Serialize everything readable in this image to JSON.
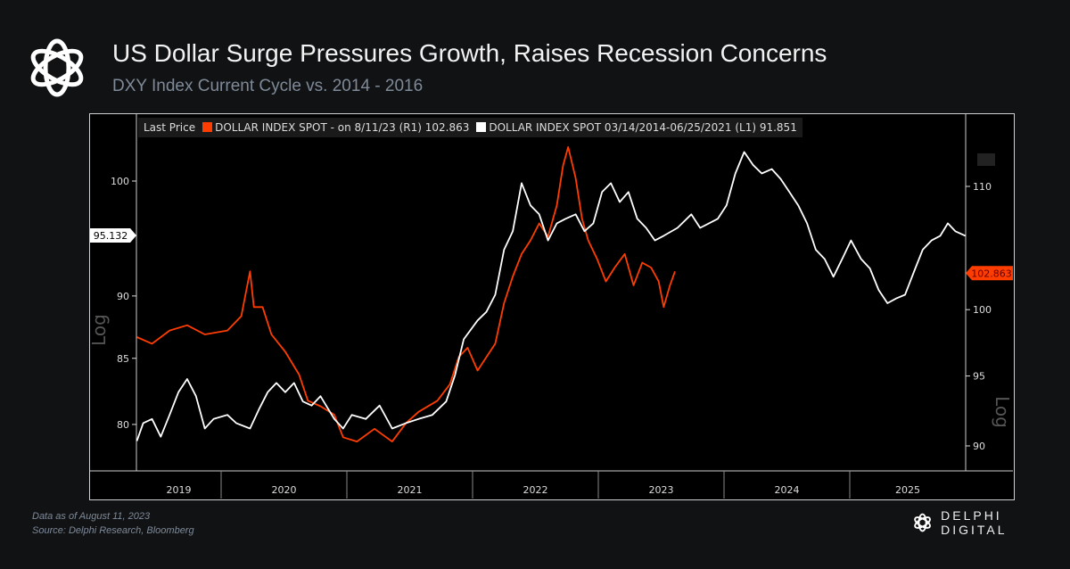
{
  "header": {
    "title": "US Dollar Surge Pressures Growth, Raises Recession Concerns",
    "subtitle": "DXY Index Current Cycle vs. 2014 - 2016"
  },
  "footer": {
    "line1": "Data as of August 11, 2023",
    "line2": "Source: Delphi Research, Bloomberg",
    "brand": "DELPHI DIGITAL"
  },
  "chart_data": {
    "type": "line",
    "legend": {
      "prefix": "Last Price",
      "series1": "DOLLAR INDEX SPOT -  on 8/11/23  (R1) 102.863",
      "series2": "DOLLAR INDEX SPOT 03/14/2014-06/25/2021   (L1) 91.851",
      "placement": "top-left"
    },
    "x_tick_labels": [
      "2019",
      "2020",
      "2021",
      "2022",
      "2023",
      "2024",
      "2025"
    ],
    "xlim": [
      2019.33,
      2025.92
    ],
    "left_axis": {
      "label": "Log",
      "scale": "log",
      "ticks": [
        80,
        85,
        90,
        100
      ],
      "marker": "95.132"
    },
    "right_axis": {
      "label": "Log",
      "scale": "log",
      "ticks": [
        90,
        95,
        100,
        110
      ],
      "marker": "102.863"
    },
    "colors": {
      "series1": "#ff3d00",
      "series2": "#ffffff"
    },
    "series": [
      {
        "name": "DOLLAR INDEX SPOT (current, R1)",
        "axis": "right",
        "points": [
          [
            2019.33,
            97.9
          ],
          [
            2019.45,
            97.4
          ],
          [
            2019.59,
            98.4
          ],
          [
            2019.73,
            98.8
          ],
          [
            2019.87,
            98.1
          ],
          [
            2020.05,
            98.4
          ],
          [
            2020.16,
            99.5
          ],
          [
            2020.23,
            103.0
          ],
          [
            2020.26,
            100.2
          ],
          [
            2020.33,
            100.2
          ],
          [
            2020.4,
            98.1
          ],
          [
            2020.51,
            96.8
          ],
          [
            2020.62,
            95.1
          ],
          [
            2020.69,
            93.2
          ],
          [
            2020.79,
            92.8
          ],
          [
            2020.9,
            92.2
          ],
          [
            2020.97,
            90.6
          ],
          [
            2021.08,
            90.3
          ],
          [
            2021.22,
            91.2
          ],
          [
            2021.36,
            90.3
          ],
          [
            2021.47,
            91.6
          ],
          [
            2021.57,
            92.4
          ],
          [
            2021.72,
            93.2
          ],
          [
            2021.82,
            94.4
          ],
          [
            2021.89,
            96.4
          ],
          [
            2021.96,
            97.1
          ],
          [
            2022.04,
            95.4
          ],
          [
            2022.11,
            96.4
          ],
          [
            2022.18,
            97.4
          ],
          [
            2022.25,
            100.5
          ],
          [
            2022.32,
            102.6
          ],
          [
            2022.39,
            104.4
          ],
          [
            2022.46,
            105.5
          ],
          [
            2022.53,
            106.9
          ],
          [
            2022.6,
            105.8
          ],
          [
            2022.67,
            108.4
          ],
          [
            2022.72,
            111.8
          ],
          [
            2022.76,
            113.4
          ],
          [
            2022.82,
            110.7
          ],
          [
            2022.87,
            107.3
          ],
          [
            2022.92,
            105.5
          ],
          [
            2022.99,
            104.0
          ],
          [
            2023.06,
            102.2
          ],
          [
            2023.13,
            103.3
          ],
          [
            2023.21,
            104.4
          ],
          [
            2023.28,
            101.9
          ],
          [
            2023.35,
            103.7
          ],
          [
            2023.42,
            103.3
          ],
          [
            2023.48,
            102.2
          ],
          [
            2023.52,
            100.2
          ],
          [
            2023.57,
            101.9
          ],
          [
            2023.61,
            103.0
          ]
        ]
      },
      {
        "name": "DOLLAR INDEX SPOT 03/14/2014-06/25/2021 (L1)",
        "axis": "left",
        "points": [
          [
            2019.33,
            78.8
          ],
          [
            2019.38,
            80.1
          ],
          [
            2019.45,
            80.4
          ],
          [
            2019.52,
            79.1
          ],
          [
            2019.59,
            80.7
          ],
          [
            2019.66,
            82.4
          ],
          [
            2019.73,
            83.4
          ],
          [
            2019.8,
            82.1
          ],
          [
            2019.87,
            79.7
          ],
          [
            2019.94,
            80.4
          ],
          [
            2020.05,
            80.7
          ],
          [
            2020.12,
            80.1
          ],
          [
            2020.23,
            79.7
          ],
          [
            2020.3,
            81.1
          ],
          [
            2020.37,
            82.4
          ],
          [
            2020.44,
            83.1
          ],
          [
            2020.51,
            82.4
          ],
          [
            2020.58,
            83.1
          ],
          [
            2020.65,
            81.7
          ],
          [
            2020.72,
            81.4
          ],
          [
            2020.79,
            82.1
          ],
          [
            2020.9,
            80.4
          ],
          [
            2020.97,
            79.7
          ],
          [
            2021.04,
            80.7
          ],
          [
            2021.15,
            80.4
          ],
          [
            2021.26,
            81.4
          ],
          [
            2021.36,
            79.7
          ],
          [
            2021.47,
            80.1
          ],
          [
            2021.57,
            80.4
          ],
          [
            2021.68,
            80.7
          ],
          [
            2021.79,
            81.7
          ],
          [
            2021.86,
            83.7
          ],
          [
            2021.93,
            86.5
          ],
          [
            2022.04,
            88.0
          ],
          [
            2022.11,
            88.7
          ],
          [
            2022.18,
            90.1
          ],
          [
            2022.25,
            93.9
          ],
          [
            2022.32,
            95.5
          ],
          [
            2022.39,
            99.8
          ],
          [
            2022.46,
            97.8
          ],
          [
            2022.53,
            97.0
          ],
          [
            2022.6,
            94.7
          ],
          [
            2022.67,
            96.2
          ],
          [
            2022.74,
            96.6
          ],
          [
            2022.82,
            97.0
          ],
          [
            2022.89,
            95.5
          ],
          [
            2022.96,
            96.2
          ],
          [
            2023.03,
            99.0
          ],
          [
            2023.1,
            99.8
          ],
          [
            2023.17,
            98.1
          ],
          [
            2023.24,
            99.0
          ],
          [
            2023.31,
            96.6
          ],
          [
            2023.38,
            95.8
          ],
          [
            2023.45,
            94.7
          ],
          [
            2023.52,
            95.1
          ],
          [
            2023.63,
            95.8
          ],
          [
            2023.74,
            97.0
          ],
          [
            2023.81,
            95.8
          ],
          [
            2023.88,
            96.2
          ],
          [
            2023.95,
            96.6
          ],
          [
            2024.02,
            97.8
          ],
          [
            2024.09,
            100.7
          ],
          [
            2024.16,
            102.7
          ],
          [
            2024.23,
            101.5
          ],
          [
            2024.3,
            100.7
          ],
          [
            2024.38,
            101.1
          ],
          [
            2024.45,
            100.2
          ],
          [
            2024.52,
            99.0
          ],
          [
            2024.59,
            97.8
          ],
          [
            2024.66,
            96.2
          ],
          [
            2024.73,
            93.9
          ],
          [
            2024.8,
            93.1
          ],
          [
            2024.87,
            91.6
          ],
          [
            2024.94,
            93.1
          ],
          [
            2025.01,
            94.7
          ],
          [
            2025.09,
            93.1
          ],
          [
            2025.16,
            92.3
          ],
          [
            2025.23,
            90.5
          ],
          [
            2025.3,
            89.4
          ],
          [
            2025.37,
            89.8
          ],
          [
            2025.44,
            90.1
          ],
          [
            2025.51,
            92.0
          ],
          [
            2025.58,
            93.9
          ],
          [
            2025.65,
            94.7
          ],
          [
            2025.72,
            95.1
          ],
          [
            2025.78,
            96.2
          ],
          [
            2025.84,
            95.5
          ],
          [
            2025.92,
            95.1
          ]
        ]
      }
    ]
  }
}
